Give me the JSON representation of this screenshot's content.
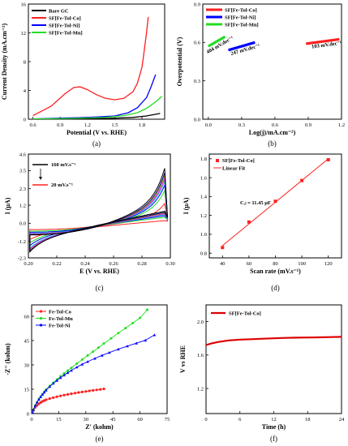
{
  "chart_data": [
    {
      "panel": "a",
      "type": "line",
      "caption": "(a)",
      "xlabel": "Potential (V vs. RHE)",
      "ylabel": "Current Density (mA.cm⁻²)",
      "xlim": [
        0.55,
        2.05
      ],
      "ylim": [
        0,
        16
      ],
      "xticks": [
        "0.6",
        "0.9",
        "1.2",
        "1.5",
        "1.8",
        "2.1"
      ],
      "xtick_values": [
        0.6,
        0.9,
        1.2,
        1.5,
        1.8,
        2.1
      ],
      "yticks": [
        "0",
        "4",
        "8",
        "12",
        "16"
      ],
      "ytick_values": [
        0,
        4,
        8,
        12,
        16
      ],
      "legend_position": "top-left",
      "series": [
        {
          "name": "Bare GC",
          "color": "#000000",
          "x": [
            0.6,
            1.0,
            1.4,
            1.7,
            1.85,
            2.0
          ],
          "y": [
            0.0,
            0.05,
            0.1,
            0.25,
            0.45,
            0.8
          ]
        },
        {
          "name": "SF[Fe-Tol-Co]",
          "color": "#ff2020",
          "x": [
            0.6,
            0.8,
            0.95,
            1.05,
            1.12,
            1.2,
            1.3,
            1.4,
            1.5,
            1.6,
            1.7,
            1.75,
            1.8,
            1.82,
            1.85,
            1.87
          ],
          "y": [
            0.5,
            1.8,
            3.5,
            4.4,
            4.5,
            4.1,
            3.4,
            2.9,
            2.7,
            2.9,
            3.8,
            5.0,
            7.2,
            9.0,
            12.0,
            14.2
          ]
        },
        {
          "name": "SF[Fe-Tol-Ni]",
          "color": "#0000ff",
          "x": [
            0.6,
            0.9,
            1.1,
            1.3,
            1.5,
            1.65,
            1.75,
            1.85,
            1.9,
            1.95
          ],
          "y": [
            0.05,
            0.15,
            0.2,
            0.3,
            0.45,
            0.9,
            1.6,
            3.0,
            4.5,
            6.2
          ]
        },
        {
          "name": "SF[Fe-Tol-Mn]",
          "color": "#22dd22",
          "x": [
            0.6,
            1.0,
            1.4,
            1.6,
            1.75,
            1.85,
            1.95,
            2.02
          ],
          "y": [
            0.05,
            0.1,
            0.25,
            0.5,
            0.9,
            1.5,
            2.4,
            3.2
          ]
        }
      ]
    },
    {
      "panel": "b",
      "type": "line",
      "caption": "(b)",
      "xlabel": "Log(j)/mA.cm⁻²)",
      "ylabel": "Overpotential (V)",
      "xlim": [
        -0.05,
        1.2
      ],
      "ylim": [
        0.0,
        0.9
      ],
      "xticks": [
        "0.0",
        "0.3",
        "0.6",
        "0.9",
        "1.2"
      ],
      "xtick_values": [
        0.0,
        0.3,
        0.6,
        0.9,
        1.2
      ],
      "yticks": [
        "0.0",
        "0.3",
        "0.6",
        "0.9"
      ],
      "ytick_values": [
        0.0,
        0.3,
        0.6,
        0.9
      ],
      "legend_position": "top-left",
      "series": [
        {
          "name": "SF[Fe-Tol-Co]",
          "color": "#ff2020",
          "x": [
            0.88,
            1.18
          ],
          "y": [
            0.59,
            0.625
          ]
        },
        {
          "name": "SF[Fe-Tol-Ni]",
          "color": "#0000ff",
          "x": [
            0.18,
            0.42
          ],
          "y": [
            0.54,
            0.6
          ]
        },
        {
          "name": "SF[Fe-Tol-Mn]",
          "color": "#22dd22",
          "x": [
            0.0,
            0.15
          ],
          "y": [
            0.57,
            0.645
          ]
        }
      ],
      "annotations": [
        {
          "text": "103 mV.dec⁻¹",
          "series": 0
        },
        {
          "text": "247 mV.dec⁻¹",
          "series": 1
        },
        {
          "text": "404 mV.dec⁻¹",
          "series": 2
        }
      ]
    },
    {
      "panel": "c",
      "type": "line",
      "caption": "(c)",
      "xlabel": "E (V vs. RHE)",
      "ylabel": "I (μA)",
      "xlim": [
        0.2,
        0.3
      ],
      "ylim": [
        -2.3,
        4.6
      ],
      "xticks": [
        "0.20",
        "0.22",
        "0.24",
        "0.26",
        "0.28",
        "0.30"
      ],
      "xtick_values": [
        0.2,
        0.22,
        0.24,
        0.26,
        0.28,
        0.3
      ],
      "yticks": [
        "-2.3",
        "-1.2",
        "0.0",
        "1.2",
        "2.3",
        "3.5",
        "4.6"
      ],
      "ytick_values": [
        -2.3,
        -1.2,
        0.0,
        1.2,
        2.3,
        3.5,
        4.6
      ],
      "scan_rate_range": [
        20,
        160
      ],
      "cycles": 8,
      "colors": [
        "#ff2020",
        "#22dd22",
        "#0000ff",
        "#00cccc",
        "#ff00ff",
        "#999900",
        "#000080",
        "#000000"
      ],
      "cv_amplitude_upper": [
        1.5,
        2.4,
        2.8,
        3.1,
        3.3,
        3.5,
        3.7,
        4.0
      ],
      "cv_amplitude_lower": [
        -1.2,
        -1.5,
        -1.7,
        -1.9,
        -2.0,
        -2.1,
        -2.15,
        -2.2
      ],
      "annotations": [
        {
          "text": "160 mV.s⁻¹"
        },
        {
          "text": "20 mV.s⁻¹"
        }
      ]
    },
    {
      "panel": "d",
      "type": "scatter",
      "caption": "(d)",
      "xlabel": "Scan rate (mV.s⁻¹)",
      "ylabel": "I (μA)",
      "xlim": [
        30,
        130
      ],
      "ylim": [
        0.75,
        1.85
      ],
      "xticks": [
        "40",
        "60",
        "80",
        "100",
        "120"
      ],
      "xtick_values": [
        40,
        60,
        80,
        100,
        120
      ],
      "yticks": [
        "0.8",
        "1.0",
        "1.2",
        "1.4",
        "1.6",
        "1.8"
      ],
      "ytick_values": [
        0.8,
        1.0,
        1.2,
        1.4,
        1.6,
        1.8
      ],
      "legend_position": "top-left",
      "series": [
        {
          "name": "SF[Fe-Tol-Co]",
          "color": "#ff2020",
          "x": [
            40,
            60,
            80,
            100,
            120
          ],
          "y": [
            0.86,
            1.13,
            1.35,
            1.57,
            1.79
          ]
        }
      ],
      "fit": {
        "name": "Linear Fit",
        "color": "#ff2020",
        "x": [
          40,
          120
        ],
        "y": [
          0.88,
          1.8
        ]
      },
      "annotations": [
        {
          "text": "Cₑₗ = 11.45 μF"
        }
      ]
    },
    {
      "panel": "e",
      "type": "scatter",
      "caption": "(e)",
      "xlabel": "Z' (kohm)",
      "ylabel": "-Z'' (kohm)",
      "xlim": [
        0,
        75
      ],
      "ylim": [
        0,
        67
      ],
      "xticks": [
        "0",
        "15",
        "30",
        "45",
        "60",
        "75"
      ],
      "xtick_values": [
        0,
        15,
        30,
        45,
        60,
        75
      ],
      "yticks": [
        "0",
        "15",
        "30",
        "45",
        "60"
      ],
      "ytick_values": [
        0,
        15,
        30,
        45,
        60
      ],
      "legend_position": "top-left",
      "series": [
        {
          "name": "Fe-Tol-Co",
          "color": "#ff2020",
          "x": [
            0.5,
            1,
            2,
            3,
            4,
            5,
            6,
            7,
            8,
            10,
            12,
            14,
            16,
            18,
            20,
            22,
            24,
            26,
            28,
            30,
            32,
            34,
            36,
            38,
            40
          ],
          "y": [
            0.5,
            2,
            3.8,
            5,
            6,
            6.8,
            7.5,
            8,
            8.5,
            9.2,
            9.8,
            10.4,
            10.9,
            11.4,
            11.8,
            12.2,
            12.6,
            13,
            13.3,
            13.6,
            14,
            14.3,
            14.6,
            14.9,
            15.2
          ]
        },
        {
          "name": "Fe-Tol-Mn",
          "color": "#22dd22",
          "x": [
            0.5,
            1,
            2,
            3,
            4,
            5,
            6,
            7,
            8,
            10,
            12,
            14,
            16,
            18,
            20,
            22,
            25,
            28,
            31,
            34,
            37,
            40,
            44,
            48,
            52,
            56,
            60,
            64
          ],
          "y": [
            0.5,
            2.5,
            5,
            7,
            9,
            10.5,
            12,
            13.5,
            14.8,
            17,
            19,
            21,
            23,
            24.8,
            26.5,
            28.2,
            30.8,
            33.3,
            35.8,
            38.2,
            40.7,
            43.2,
            46.4,
            49.6,
            52.7,
            55.8,
            59,
            64
          ]
        },
        {
          "name": "Fe-Tol-Ni",
          "color": "#0000ff",
          "x": [
            0.5,
            1,
            2,
            3,
            4,
            5,
            6,
            7,
            8,
            10,
            12,
            14,
            16,
            18,
            20,
            22,
            25,
            28,
            31,
            35,
            39,
            43,
            48,
            53,
            58,
            63,
            68
          ],
          "y": [
            0.5,
            2.5,
            5,
            7,
            8.7,
            10.3,
            11.8,
            13.1,
            14.4,
            16.6,
            18.6,
            20.4,
            22.1,
            23.7,
            25.2,
            26.6,
            28.6,
            30.4,
            32,
            34,
            35.9,
            37.6,
            39.7,
            41.6,
            43.4,
            45.2,
            48.5
          ]
        }
      ]
    },
    {
      "panel": "f",
      "type": "line",
      "caption": "(f)",
      "xlabel": "Time (h)",
      "ylabel": "V vs RHE",
      "xlim": [
        0,
        24
      ],
      "ylim": [
        0.9,
        2.2
      ],
      "xticks": [
        "0",
        "6",
        "12",
        "18",
        "24"
      ],
      "xtick_values": [
        0,
        6,
        12,
        18,
        24
      ],
      "yticks": [
        "1.2",
        "1.6",
        "2.0"
      ],
      "ytick_values": [
        1.2,
        1.6,
        2.0
      ],
      "legend_position": "top-left",
      "series": [
        {
          "name": "SF[Fe-Tol-Co]",
          "color": "#dd0000",
          "x": [
            0,
            1,
            2,
            3,
            4,
            6,
            8,
            10,
            12,
            14,
            16,
            18,
            20,
            22,
            24
          ],
          "y": [
            1.72,
            1.74,
            1.755,
            1.765,
            1.775,
            1.785,
            1.79,
            1.795,
            1.8,
            1.805,
            1.808,
            1.81,
            1.812,
            1.815,
            1.818
          ]
        }
      ]
    }
  ]
}
